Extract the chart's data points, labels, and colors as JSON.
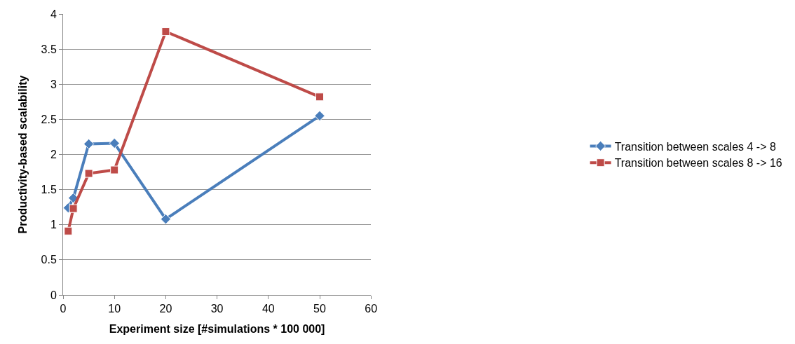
{
  "chart_data": {
    "type": "line",
    "xlabel": "Experiment size [#simulations * 100 000]",
    "ylabel": "Productivity-based scalability",
    "x": [
      1,
      2,
      5,
      10,
      20,
      50
    ],
    "series": [
      {
        "name": "Transition between scales 4 -> 8",
        "color": "#4a7ebb",
        "marker": "diamond",
        "values": [
          1.24,
          1.38,
          2.15,
          2.16,
          1.08,
          2.55
        ]
      },
      {
        "name": "Transition between scales 8 -> 16",
        "color": "#be4b48",
        "marker": "square",
        "values": [
          0.91,
          1.23,
          1.73,
          1.78,
          3.75,
          2.82
        ]
      }
    ],
    "xlim": [
      0,
      60
    ],
    "xticks": [
      0,
      10,
      20,
      30,
      40,
      50,
      60
    ],
    "ylim": [
      0,
      4
    ],
    "yticks": [
      0,
      0.5,
      1,
      1.5,
      2,
      2.5,
      3,
      3.5,
      4
    ],
    "grid": "y",
    "legend": "right"
  }
}
